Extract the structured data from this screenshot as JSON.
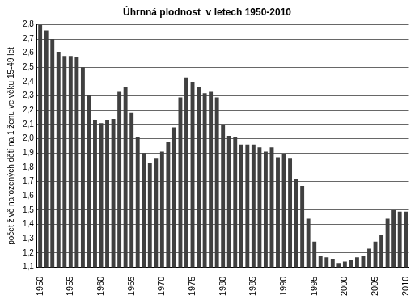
{
  "chart_data": {
    "type": "bar",
    "title": "Úhrnná plodnost  v letech 1950-2010",
    "y_label": "počet živě narozených dětí na 1 ženu ve věku 15-49 let",
    "categories": [
      "1950",
      null,
      null,
      null,
      null,
      "1955",
      null,
      null,
      null,
      null,
      "1960",
      null,
      null,
      null,
      null,
      "1965",
      null,
      null,
      null,
      null,
      "1970",
      null,
      null,
      null,
      null,
      "1975",
      null,
      null,
      null,
      null,
      "1980",
      null,
      null,
      null,
      null,
      "1985",
      null,
      null,
      null,
      null,
      "1990",
      null,
      null,
      null,
      null,
      "1995",
      null,
      null,
      null,
      null,
      "2000",
      null,
      null,
      null,
      null,
      "2005",
      null,
      null,
      null,
      null,
      "2010"
    ],
    "values": [
      2.8,
      2.76,
      2.7,
      2.61,
      2.58,
      2.58,
      2.57,
      2.5,
      2.31,
      2.13,
      2.11,
      2.13,
      2.14,
      2.33,
      2.36,
      2.18,
      2.01,
      1.9,
      1.83,
      1.86,
      1.91,
      1.98,
      2.08,
      2.29,
      2.43,
      2.4,
      2.36,
      2.32,
      2.33,
      2.29,
      2.1,
      2.02,
      2.01,
      1.96,
      1.96,
      1.96,
      1.94,
      1.91,
      1.94,
      1.87,
      1.89,
      1.86,
      1.72,
      1.67,
      1.44,
      1.28,
      1.18,
      1.17,
      1.16,
      1.13,
      1.14,
      1.15,
      1.17,
      1.18,
      1.23,
      1.28,
      1.33,
      1.44,
      1.5,
      1.49,
      1.49
    ],
    "color": "#404040",
    "ylim": [
      1.1,
      2.8
    ],
    "yticks": [
      {
        "value": 1.1,
        "label": "1,1"
      },
      {
        "value": 1.2,
        "label": "1,2"
      },
      {
        "value": 1.3,
        "label": "1,3"
      },
      {
        "value": 1.4,
        "label": "1,4"
      },
      {
        "value": 1.5,
        "label": "1,5"
      },
      {
        "value": 1.6,
        "label": "1,6"
      },
      {
        "value": 1.7,
        "label": "1,7"
      },
      {
        "value": 1.8,
        "label": "1,8"
      },
      {
        "value": 1.9,
        "label": "1,9"
      },
      {
        "value": 2.0,
        "label": "2,0"
      },
      {
        "value": 2.1,
        "label": "2,1"
      },
      {
        "value": 2.2,
        "label": "2,2"
      },
      {
        "value": 2.3,
        "label": "2,3"
      },
      {
        "value": 2.4,
        "label": "2,4"
      },
      {
        "value": 2.5,
        "label": "2,5"
      },
      {
        "value": 2.6,
        "label": "2,6"
      },
      {
        "value": 2.7,
        "label": "2,7"
      },
      {
        "value": 2.8,
        "label": "2,8"
      }
    ],
    "grid": true
  }
}
